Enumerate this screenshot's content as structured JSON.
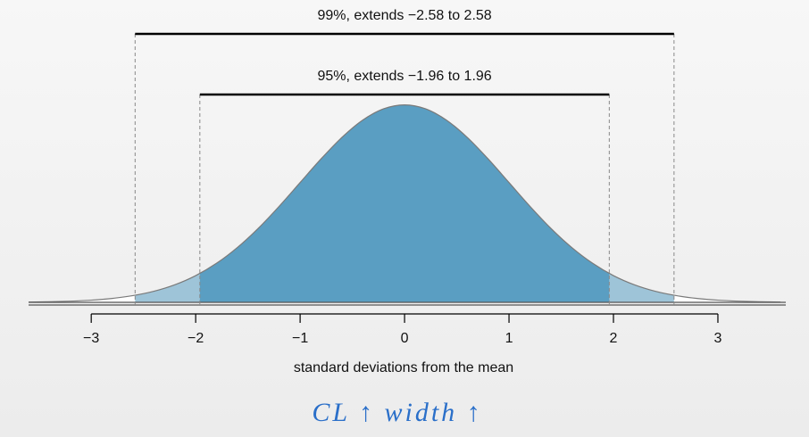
{
  "chart_data": {
    "type": "area",
    "x": [
      -3.6,
      -3.4,
      -3.2,
      -3.0,
      -2.8,
      -2.6,
      -2.4,
      -2.2,
      -2.0,
      -1.8,
      -1.6,
      -1.4,
      -1.2,
      -1.0,
      -0.8,
      -0.6,
      -0.4,
      -0.2,
      0.0,
      0.2,
      0.4,
      0.6,
      0.8,
      1.0,
      1.2,
      1.4,
      1.6,
      1.8,
      2.0,
      2.2,
      2.4,
      2.6,
      2.8,
      3.0,
      3.2,
      3.4,
      3.6
    ],
    "values": [
      0.0006,
      0.0012,
      0.0024,
      0.0044,
      0.0079,
      0.0136,
      0.0224,
      0.0355,
      0.054,
      0.079,
      0.1109,
      0.1497,
      0.1942,
      0.242,
      0.2897,
      0.3332,
      0.3683,
      0.391,
      0.3989,
      0.391,
      0.3683,
      0.3332,
      0.2897,
      0.242,
      0.1942,
      0.1497,
      0.1109,
      0.079,
      0.054,
      0.0355,
      0.0224,
      0.0136,
      0.0079,
      0.0044,
      0.0024,
      0.0012,
      0.0006
    ],
    "color": "#ffffff",
    "line_color": "#7a7a7a",
    "xlim": [
      -3.6,
      3.65
    ],
    "ylim": [
      0,
      0.4
    ],
    "xticks": [
      {
        "value": -3,
        "label": "−3"
      },
      {
        "value": -2,
        "label": "−2"
      },
      {
        "value": -1,
        "label": "−1"
      },
      0,
      1,
      2,
      3
    ],
    "xlabel": "standard deviations from the mean",
    "intervals": [
      {
        "label": "99%, extends −2.58 to 2.58",
        "lower": -2.58,
        "upper": 2.58,
        "color": "#9ec4d8"
      },
      {
        "label": "95%, extends −1.96 to 1.96",
        "lower": -1.96,
        "upper": 1.96,
        "color": "#5a9ec2"
      }
    ],
    "annotation": "CL ↑ width ↑"
  }
}
